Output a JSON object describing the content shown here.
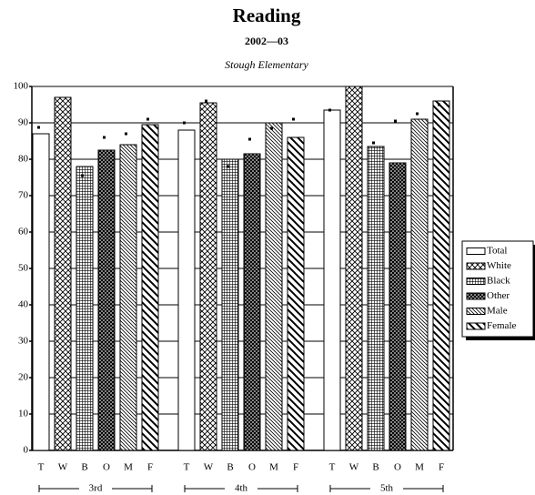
{
  "chart_data": {
    "type": "bar",
    "title": "Reading",
    "subtitle": "2002—03",
    "school": "Stough Elementary",
    "groups": [
      "3rd",
      "4th",
      "5th"
    ],
    "bar_labels": [
      "T",
      "W",
      "B",
      "O",
      "M",
      "F"
    ],
    "series": [
      {
        "name": "Total",
        "values": [
          87,
          88,
          93.5
        ],
        "markers": [
          88.75,
          90,
          93.5
        ]
      },
      {
        "name": "White",
        "values": [
          97,
          95.5,
          100
        ],
        "markers": [
          null,
          96,
          null
        ]
      },
      {
        "name": "Black",
        "values": [
          78,
          80,
          83.5
        ],
        "markers": [
          75.5,
          78,
          84.5
        ]
      },
      {
        "name": "Other",
        "values": [
          82.5,
          81.5,
          79
        ],
        "markers": [
          86,
          85.5,
          90.5
        ]
      },
      {
        "name": "Male",
        "values": [
          84,
          90,
          91
        ],
        "markers": [
          87,
          88.5,
          92.5
        ]
      },
      {
        "name": "Female",
        "values": [
          89.5,
          86,
          96
        ],
        "markers": [
          91,
          91,
          95
        ]
      }
    ],
    "ylim": [
      0,
      100
    ],
    "yticks": [
      0,
      10,
      20,
      30,
      40,
      50,
      60,
      70,
      80,
      90,
      100
    ],
    "grid": true
  }
}
